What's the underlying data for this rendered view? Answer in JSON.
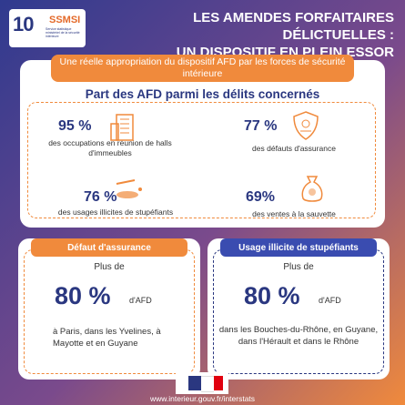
{
  "logo": {
    "mark": "10",
    "name": "SSMSI",
    "subtitle": "Service statistique ministériel de la sécurité intérieure"
  },
  "header": {
    "title_line1": "LES AMENDES FORFAITAIRES DÉLICTUELLES :",
    "title_line2": "UN DISPOSITIF EN PLEIN ESSOR"
  },
  "main": {
    "banner": "Une réelle appropriation du dispositif AFD par les forces de sécurité intérieure",
    "subtitle": "Part des AFD parmi les délits concernés",
    "stats": [
      {
        "pct": "95 %",
        "desc": "des occupations en réunion de halls d'immeubles",
        "icon": "building-icon"
      },
      {
        "pct": "77 %",
        "desc": "des défauts d'assurance",
        "icon": "shield-icon"
      },
      {
        "pct": "76 %",
        "desc": "des usages illicites de stupéfiants",
        "icon": "drugs-icon"
      },
      {
        "pct": "69%",
        "desc": "des ventes à la sauvette",
        "icon": "money-bag-icon"
      }
    ]
  },
  "cards": [
    {
      "title": "Défaut d'assurance",
      "plus": "Plus de",
      "value": "80 %",
      "unit": "d'AFD",
      "places": "à Paris, dans les Yvelines, à Mayotte et en Guyane"
    },
    {
      "title": "Usage illicite de stupéfiants",
      "plus": "Plus de",
      "value": "80 %",
      "unit": "d'AFD",
      "places": "dans les Bouches-du-Rhône, en Guyane, dans l'Hérault et dans le Rhône"
    }
  ],
  "footer": {
    "url": "www.interieur.gouv.fr/interstats"
  },
  "colors": {
    "navy": "#2a3780",
    "orange": "#f08a3c",
    "blue": "#3a4cb0"
  }
}
